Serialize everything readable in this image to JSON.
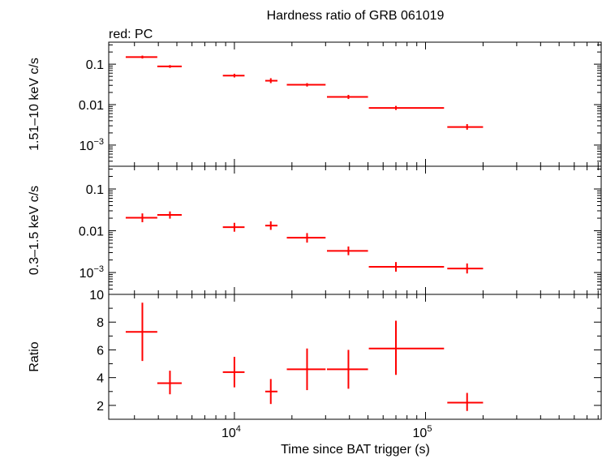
{
  "chart_data": {
    "type": "scatter",
    "title": "Hardness ratio of GRB 061019",
    "subtitle": "red: PC",
    "xlabel": "Time since BAT trigger (s)",
    "xscale": "log",
    "xlim": [
      2200,
      830000
    ],
    "x_ticks": [
      {
        "value": 10000,
        "base": "10",
        "exp": "4"
      },
      {
        "value": 100000,
        "base": "10",
        "exp": "5"
      }
    ],
    "color": "#ff0000",
    "panels": [
      {
        "ylabel": "1.51–10 keV c/s",
        "yscale": "log",
        "ylim": [
          0.0003,
          0.35
        ],
        "y_ticks": [
          {
            "value": 0.1,
            "text": "0.1"
          },
          {
            "value": 0.01,
            "text": "0.01"
          },
          {
            "value": 0.001,
            "base": "10",
            "exp": "−3"
          }
        ],
        "points": [
          {
            "x": 3300,
            "xlo": 2700,
            "xhi": 3950,
            "y": 0.15,
            "ylo": 0.138,
            "yhi": 0.163
          },
          {
            "x": 4600,
            "xlo": 3950,
            "xhi": 5300,
            "y": 0.088,
            "ylo": 0.081,
            "yhi": 0.095
          },
          {
            "x": 10000,
            "xlo": 8700,
            "xhi": 11300,
            "y": 0.052,
            "ylo": 0.047,
            "yhi": 0.058
          },
          {
            "x": 15500,
            "xlo": 14500,
            "xhi": 16800,
            "y": 0.039,
            "ylo": 0.034,
            "yhi": 0.045
          },
          {
            "x": 24000,
            "xlo": 18800,
            "xhi": 30000,
            "y": 0.031,
            "ylo": 0.028,
            "yhi": 0.034
          },
          {
            "x": 39500,
            "xlo": 30500,
            "xhi": 50000,
            "y": 0.0155,
            "ylo": 0.0138,
            "yhi": 0.0174
          },
          {
            "x": 70000,
            "xlo": 50500,
            "xhi": 125000,
            "y": 0.0083,
            "ylo": 0.0074,
            "yhi": 0.0093
          },
          {
            "x": 165000,
            "xlo": 130000,
            "xhi": 200000,
            "y": 0.0028,
            "ylo": 0.0024,
            "yhi": 0.0033
          }
        ]
      },
      {
        "ylabel": "0.3–1.5 keV c/s",
        "yscale": "log",
        "ylim": [
          0.0003,
          0.35
        ],
        "y_ticks": [
          {
            "value": 0.1,
            "text": "0.1"
          },
          {
            "value": 0.01,
            "text": "0.01"
          },
          {
            "value": 0.001,
            "base": "10",
            "exp": "−3"
          }
        ],
        "points": [
          {
            "x": 3300,
            "xlo": 2700,
            "xhi": 3950,
            "y": 0.0205,
            "ylo": 0.016,
            "yhi": 0.026
          },
          {
            "x": 4600,
            "xlo": 3950,
            "xhi": 5300,
            "y": 0.024,
            "ylo": 0.0195,
            "yhi": 0.029
          },
          {
            "x": 10000,
            "xlo": 8700,
            "xhi": 11300,
            "y": 0.0122,
            "ylo": 0.0095,
            "yhi": 0.0155
          },
          {
            "x": 15500,
            "xlo": 14500,
            "xhi": 16800,
            "y": 0.0133,
            "ylo": 0.0105,
            "yhi": 0.0168
          },
          {
            "x": 24000,
            "xlo": 18800,
            "xhi": 30000,
            "y": 0.0068,
            "ylo": 0.0052,
            "yhi": 0.0088
          },
          {
            "x": 39500,
            "xlo": 30500,
            "xhi": 50000,
            "y": 0.0033,
            "ylo": 0.0026,
            "yhi": 0.0042
          },
          {
            "x": 70000,
            "xlo": 50500,
            "xhi": 125000,
            "y": 0.00137,
            "ylo": 0.00105,
            "yhi": 0.00178
          },
          {
            "x": 165000,
            "xlo": 130000,
            "xhi": 200000,
            "y": 0.00125,
            "ylo": 0.00095,
            "yhi": 0.00165
          }
        ]
      },
      {
        "ylabel": "Ratio",
        "yscale": "linear",
        "ylim": [
          1.0,
          10.0
        ],
        "y_ticks": [
          {
            "value": 2,
            "text": "2"
          },
          {
            "value": 4,
            "text": "4"
          },
          {
            "value": 6,
            "text": "6"
          },
          {
            "value": 8,
            "text": "8"
          },
          {
            "value": 10,
            "text": "10"
          }
        ],
        "points": [
          {
            "x": 3300,
            "xlo": 2700,
            "xhi": 3950,
            "y": 7.3,
            "ylo": 5.2,
            "yhi": 9.4
          },
          {
            "x": 4600,
            "xlo": 3950,
            "xhi": 5300,
            "y": 3.6,
            "ylo": 2.8,
            "yhi": 4.5
          },
          {
            "x": 10000,
            "xlo": 8700,
            "xhi": 11300,
            "y": 4.4,
            "ylo": 3.3,
            "yhi": 5.5
          },
          {
            "x": 15500,
            "xlo": 14500,
            "xhi": 16800,
            "y": 3.0,
            "ylo": 2.1,
            "yhi": 3.9
          },
          {
            "x": 24000,
            "xlo": 18800,
            "xhi": 30000,
            "y": 4.6,
            "ylo": 3.1,
            "yhi": 6.1
          },
          {
            "x": 39500,
            "xlo": 30500,
            "xhi": 50000,
            "y": 4.6,
            "ylo": 3.2,
            "yhi": 6.0
          },
          {
            "x": 70000,
            "xlo": 50500,
            "xhi": 125000,
            "y": 6.1,
            "ylo": 4.2,
            "yhi": 8.1
          },
          {
            "x": 165000,
            "xlo": 130000,
            "xhi": 200000,
            "y": 2.2,
            "ylo": 1.6,
            "yhi": 2.9
          }
        ]
      }
    ]
  }
}
